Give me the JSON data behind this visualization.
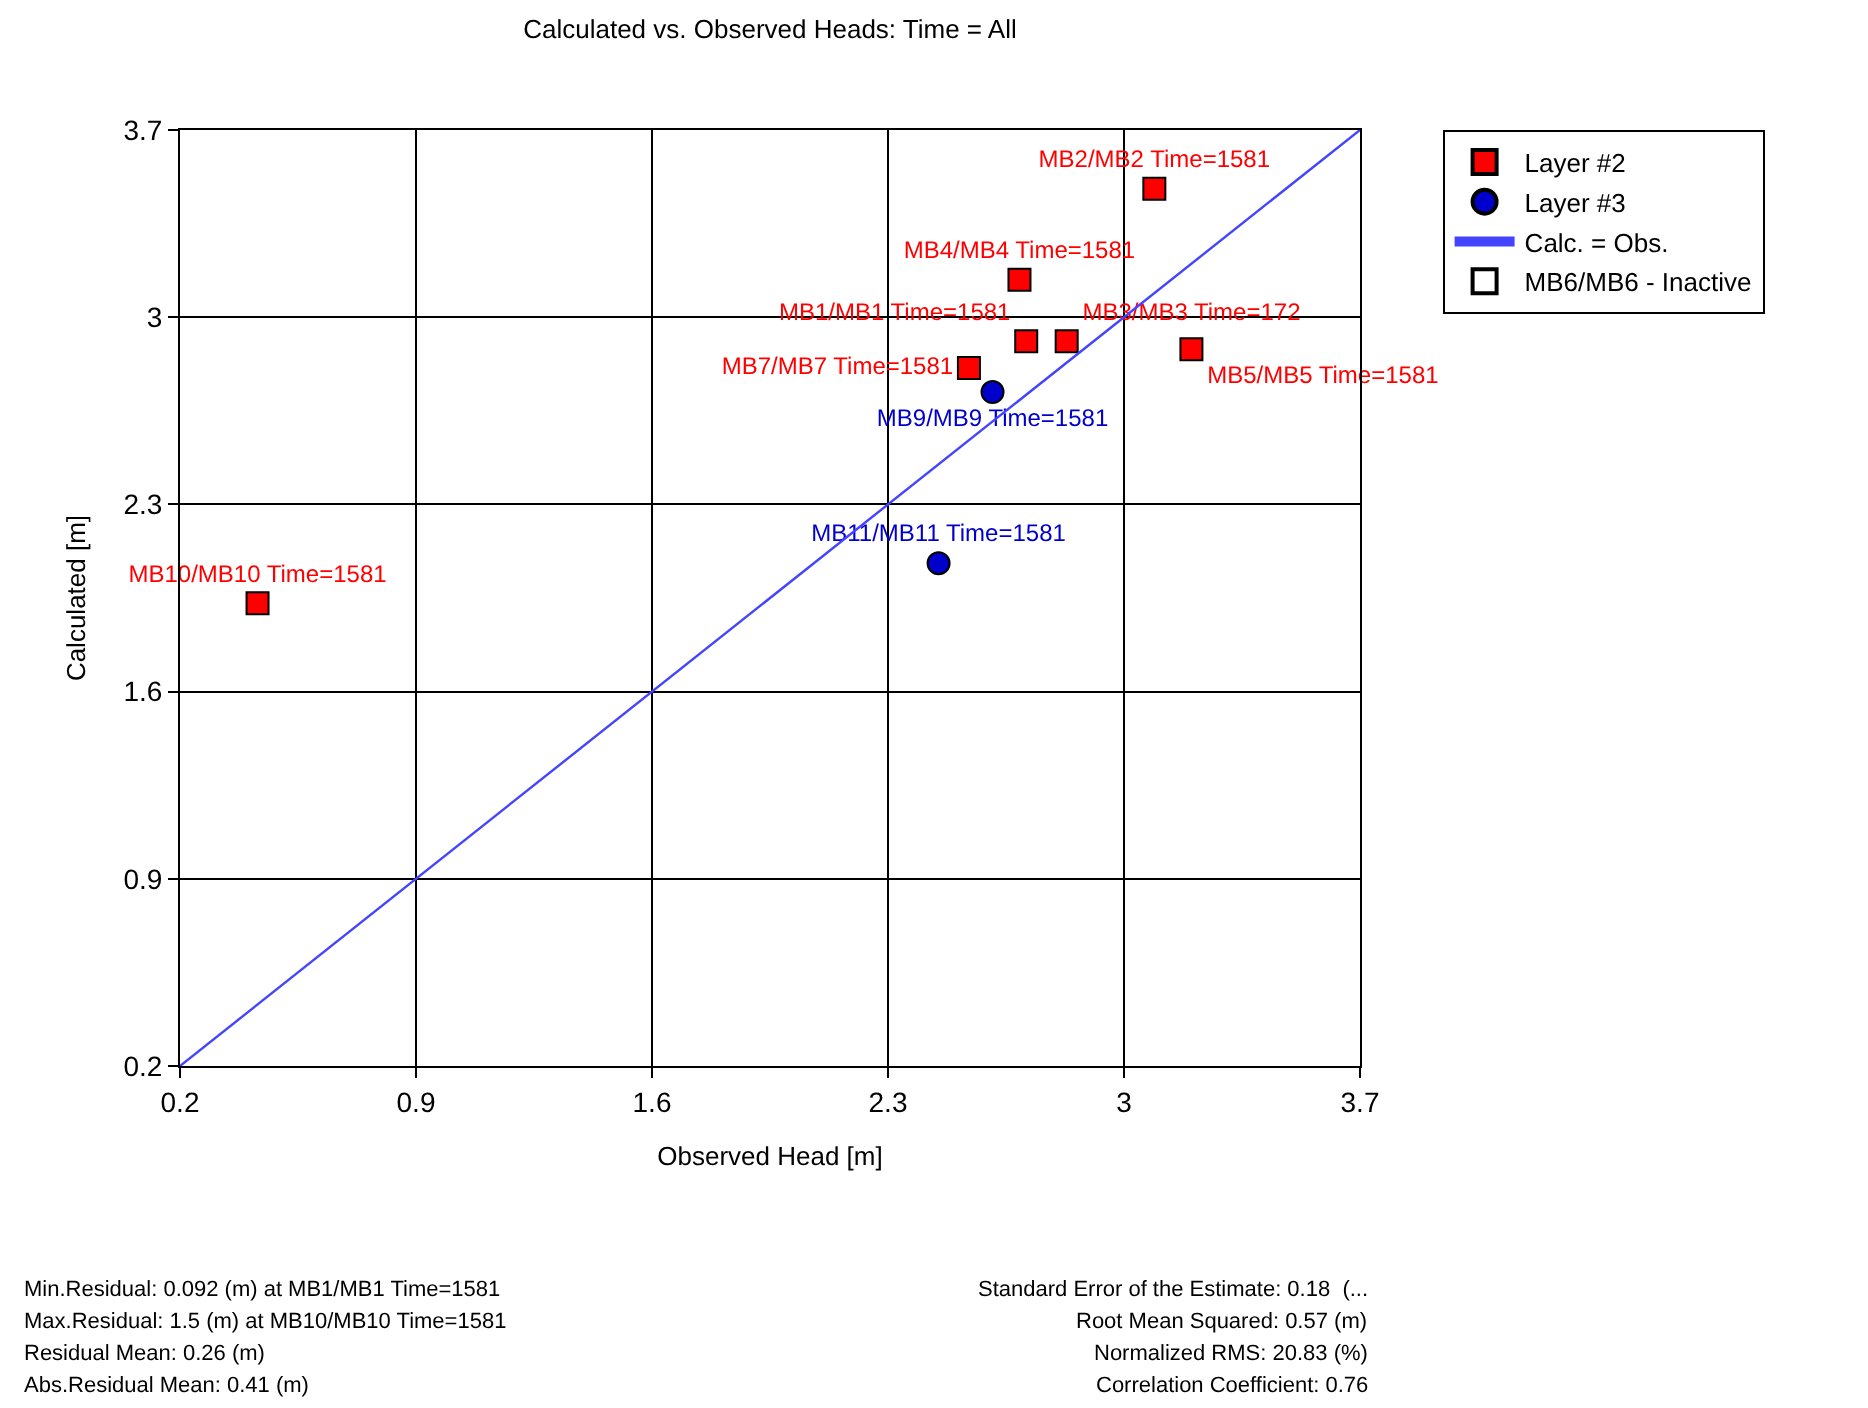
{
  "chart_data": {
    "type": "scatter",
    "title": "Calculated vs. Observed Heads: Time = All",
    "xlabel": "Observed Head [m]",
    "ylabel": "Calculated [m]",
    "xlim": [
      0.2,
      3.7
    ],
    "xticks": [
      0.2,
      0.9,
      1.6,
      2.3,
      3,
      3.7
    ],
    "ylim": [
      0.2,
      3.7
    ],
    "yticks": [
      0.2,
      0.9,
      1.6,
      2.3,
      3,
      3.7
    ],
    "grid": true,
    "legend": "top right",
    "series": [
      {
        "name": "Layer #2",
        "marker": "square",
        "color": "#ff0000",
        "x": [
          3.09,
          2.69,
          2.71,
          2.83,
          3.2,
          2.54,
          0.43
        ],
        "values": [
          3.48,
          3.14,
          2.91,
          2.91,
          2.88,
          2.81,
          1.93
        ],
        "value_labels": [
          "MB2/MB2 Time=1581",
          "MB4/MB4 Time=1581",
          "MB1/MB1 Time=1581",
          "MB3/MB3 Time=172",
          "MB5/MB5 Time=1581",
          "MB7/MB7 Time=1581",
          "MB10/MB10 Time=1581"
        ]
      },
      {
        "name": "Layer #3",
        "marker": "circle",
        "color": "#0000cc",
        "x": [
          2.61,
          2.45
        ],
        "values": [
          2.72,
          2.08
        ],
        "value_labels": [
          "MB9/MB9 Time=1581",
          "MB11/MB11 Time=1581"
        ]
      },
      {
        "name": "Calc. = Obs.",
        "type": "line",
        "marker": "none",
        "color": "#4444ff",
        "x": [
          0.2,
          3.7
        ],
        "values": [
          0.2,
          3.7
        ]
      },
      {
        "name": "MB6/MB6 - Inactive",
        "marker": "square",
        "color": "#ffffff",
        "x": [
          null
        ],
        "values": [
          null
        ]
      }
    ],
    "annotations": [
      "Min.Residual: 0.092 (m) at MB1/MB1 Time=1581",
      "Max.Residual: 1.5 (m) at MB10/MB10 Time=1581",
      "Residual Mean: 0.26 (m)",
      "Abs.Residual Mean: 0.41 (m)",
      "Standard Error of the Estimate: 0.18  (...",
      "Root Mean Squared: 0.57 (m)",
      "Normalized RMS: 20.83 (%)",
      "Correlation Coefficient: 0.76"
    ]
  }
}
